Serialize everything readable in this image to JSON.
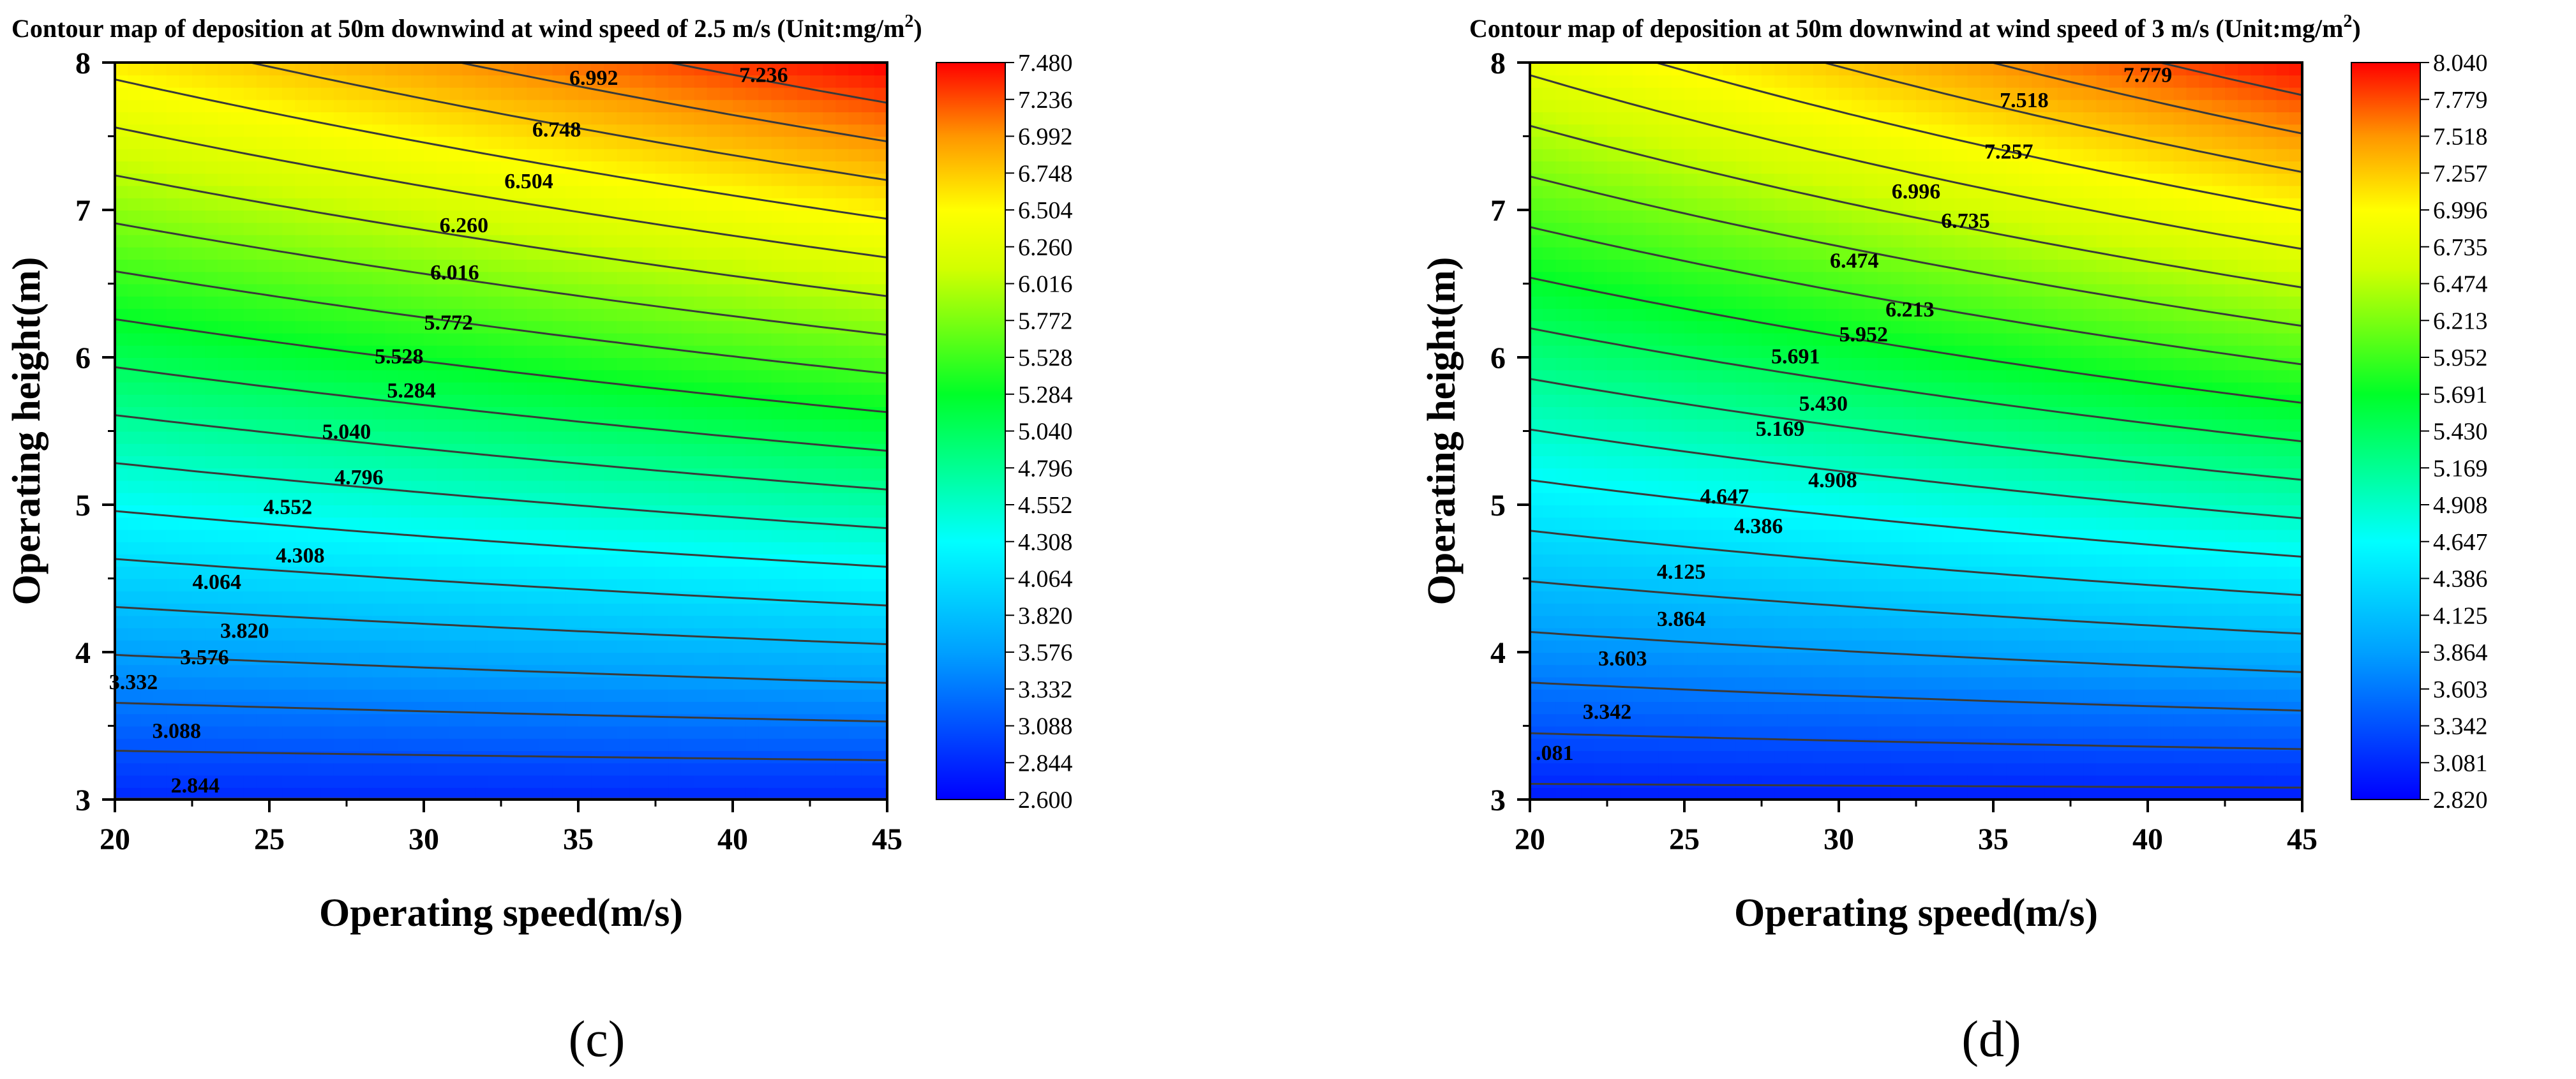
{
  "chart_data": [
    {
      "type": "heatmap",
      "id": "c",
      "subfigure_label": "(c)",
      "title": "Contour map of deposition at 50m downwind at wind speed of 2.5 m/s (Unit:mg/m",
      "title_sup": "2",
      "title_end": ")",
      "xlabel": "Operating speed(m/s)",
      "ylabel": "Operating height(m)",
      "xlim": [
        20,
        45
      ],
      "ylim": [
        3,
        8
      ],
      "xticks": [
        "20",
        "25",
        "30",
        "35",
        "40",
        "45"
      ],
      "yticks": [
        "3",
        "4",
        "5",
        "6",
        "7",
        "8"
      ],
      "colorbar": {
        "min": 2.6,
        "max": 7.48,
        "ticks": [
          "2.600",
          "2.844",
          "3.088",
          "3.332",
          "3.576",
          "3.820",
          "4.064",
          "4.308",
          "4.552",
          "4.796",
          "5.040",
          "5.284",
          "5.528",
          "5.772",
          "6.016",
          "6.260",
          "6.504",
          "6.748",
          "6.992",
          "7.236",
          "7.480"
        ]
      },
      "contour_levels": [
        "2.844",
        "3.088",
        "3.332",
        "3.576",
        "3.820",
        "4.064",
        "4.308",
        "4.552",
        "4.796",
        "5.040",
        "5.284",
        "5.528",
        "5.772",
        "6.016",
        "6.260",
        "6.504",
        "6.748",
        "6.992",
        "7.236"
      ],
      "contour_labels": [
        {
          "text": "2.844",
          "x": 22.6,
          "y": 3.1
        },
        {
          "text": "3.088",
          "x": 22.0,
          "y": 3.47
        },
        {
          "text": "3.332",
          "x": 20.6,
          "y": 3.8
        },
        {
          "text": "3.576",
          "x": 22.9,
          "y": 3.97
        },
        {
          "text": "3.820",
          "x": 24.2,
          "y": 4.15
        },
        {
          "text": "4.064",
          "x": 23.3,
          "y": 4.48
        },
        {
          "text": "4.308",
          "x": 26.0,
          "y": 4.66
        },
        {
          "text": "4.552",
          "x": 25.6,
          "y": 4.99
        },
        {
          "text": "4.796",
          "x": 27.9,
          "y": 5.19
        },
        {
          "text": "5.040",
          "x": 27.5,
          "y": 5.5
        },
        {
          "text": "5.284",
          "x": 29.6,
          "y": 5.78
        },
        {
          "text": "5.528",
          "x": 29.2,
          "y": 6.01
        },
        {
          "text": "5.772",
          "x": 30.8,
          "y": 6.24
        },
        {
          "text": "6.016",
          "x": 31.0,
          "y": 6.58
        },
        {
          "text": "6.260",
          "x": 31.3,
          "y": 6.9
        },
        {
          "text": "6.504",
          "x": 33.4,
          "y": 7.2
        },
        {
          "text": "6.748",
          "x": 34.3,
          "y": 7.55
        },
        {
          "text": "6.992",
          "x": 35.5,
          "y": 7.9
        },
        {
          "text": "7.236",
          "x": 41.0,
          "y": 7.92
        }
      ]
    },
    {
      "type": "heatmap",
      "id": "d",
      "subfigure_label": "(d)",
      "title": "Contour map of deposition at 50m downwind at wind speed of 3 m/s (Unit:mg/m",
      "title_sup": "2",
      "title_end": ")",
      "xlabel": "Operating speed(m/s)",
      "ylabel": "Operating height(m)",
      "xlim": [
        20,
        45
      ],
      "ylim": [
        3,
        8
      ],
      "xticks": [
        "20",
        "25",
        "30",
        "35",
        "40",
        "45"
      ],
      "yticks": [
        "3",
        "4",
        "5",
        "6",
        "7",
        "8"
      ],
      "colorbar": {
        "min": 2.82,
        "max": 8.04,
        "ticks": [
          "2.820",
          "3.081",
          "3.342",
          "3.603",
          "3.864",
          "4.125",
          "4.386",
          "4.647",
          "4.908",
          "5.169",
          "5.430",
          "5.691",
          "5.952",
          "6.213",
          "6.474",
          "6.735",
          "6.996",
          "7.257",
          "7.518",
          "7.779",
          "8.040"
        ]
      },
      "contour_levels": [
        "3.081",
        "3.342",
        "3.603",
        "3.864",
        "4.125",
        "4.386",
        "4.647",
        "4.908",
        "5.169",
        "5.430",
        "5.691",
        "5.952",
        "6.213",
        "6.474",
        "6.735",
        "6.996",
        "7.257",
        "7.518",
        "7.779"
      ],
      "contour_labels": [
        {
          "text": ".081",
          "x": 20.8,
          "y": 3.32
        },
        {
          "text": "3.342",
          "x": 22.5,
          "y": 3.6
        },
        {
          "text": "3.603",
          "x": 23.0,
          "y": 3.96
        },
        {
          "text": "3.864",
          "x": 24.9,
          "y": 4.23
        },
        {
          "text": "4.125",
          "x": 24.9,
          "y": 4.55
        },
        {
          "text": "4.386",
          "x": 27.4,
          "y": 4.86
        },
        {
          "text": "4.647",
          "x": 26.3,
          "y": 5.06
        },
        {
          "text": "4.908",
          "x": 29.8,
          "y": 5.17
        },
        {
          "text": "5.169",
          "x": 28.1,
          "y": 5.52
        },
        {
          "text": "5.430",
          "x": 29.5,
          "y": 5.69
        },
        {
          "text": "5.691",
          "x": 28.6,
          "y": 6.01
        },
        {
          "text": "5.952",
          "x": 30.8,
          "y": 6.16
        },
        {
          "text": "6.213",
          "x": 32.3,
          "y": 6.33
        },
        {
          "text": "6.474",
          "x": 30.5,
          "y": 6.66
        },
        {
          "text": "6.735",
          "x": 34.1,
          "y": 6.93
        },
        {
          "text": "6.996",
          "x": 32.5,
          "y": 7.13
        },
        {
          "text": "7.257",
          "x": 35.5,
          "y": 7.4
        },
        {
          "text": "7.518",
          "x": 36.0,
          "y": 7.75
        },
        {
          "text": "7.779",
          "x": 40.0,
          "y": 7.92
        }
      ]
    }
  ]
}
